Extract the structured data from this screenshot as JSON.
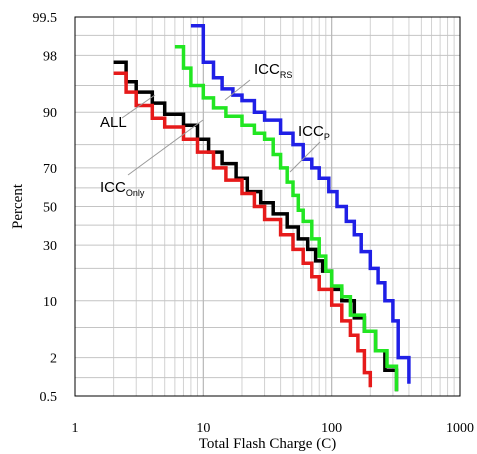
{
  "chart_data": {
    "type": "line",
    "x_scale": "log",
    "y_scale": "probability",
    "xlabel": "Total Flash Charge (C)",
    "ylabel": "Percent",
    "xlim": [
      1,
      1000
    ],
    "ylim": [
      0.5,
      99.5
    ],
    "grid": true,
    "x_ticks": [
      1,
      10,
      100,
      1000
    ],
    "x_tick_labels": [
      "1",
      "10",
      "100",
      "1000"
    ],
    "y_ticks": [
      0.5,
      2,
      10,
      30,
      50,
      70,
      90,
      98,
      99.5
    ],
    "y_tick_labels": [
      "0.5",
      "2",
      "10",
      "30",
      "50",
      "70",
      "90",
      "98",
      "99.5"
    ],
    "series": [
      {
        "name": "ALL",
        "label_main": "ALL",
        "label_sub": "",
        "color": "#000000",
        "points": [
          [
            2,
            97.5
          ],
          [
            2.5,
            95.5
          ],
          [
            3,
            94
          ],
          [
            4,
            92
          ],
          [
            5,
            89.5
          ],
          [
            7,
            86.5
          ],
          [
            9,
            82
          ],
          [
            11,
            77
          ],
          [
            14,
            72
          ],
          [
            18,
            65
          ],
          [
            22,
            58
          ],
          [
            28,
            52
          ],
          [
            35,
            46
          ],
          [
            45,
            39
          ],
          [
            55,
            33
          ],
          [
            65,
            28
          ],
          [
            75,
            23
          ],
          [
            85,
            19
          ],
          [
            100,
            13
          ],
          [
            120,
            10
          ],
          [
            150,
            6.5
          ],
          [
            180,
            4.5
          ],
          [
            220,
            2.5
          ],
          [
            260,
            1.3
          ],
          [
            320,
            0.6
          ]
        ]
      },
      {
        "name": "ICCRS",
        "label_main": "ICC",
        "label_sub": "RS",
        "color": "#1f1fe6",
        "points": [
          [
            8,
            99.3
          ],
          [
            10,
            97.5
          ],
          [
            12,
            96
          ],
          [
            14,
            94.5
          ],
          [
            17,
            93.5
          ],
          [
            20,
            92.5
          ],
          [
            25,
            90
          ],
          [
            30,
            88
          ],
          [
            40,
            84
          ],
          [
            50,
            80
          ],
          [
            60,
            74
          ],
          [
            70,
            70
          ],
          [
            80,
            65
          ],
          [
            95,
            58
          ],
          [
            110,
            50
          ],
          [
            130,
            42
          ],
          [
            150,
            35
          ],
          [
            170,
            27
          ],
          [
            200,
            20
          ],
          [
            230,
            15
          ],
          [
            260,
            10
          ],
          [
            300,
            6
          ],
          [
            330,
            2
          ],
          [
            370,
            2
          ],
          [
            400,
            0.8
          ]
        ]
      },
      {
        "name": "ICCP",
        "label_main": "ICC",
        "label_sub": "P",
        "color": "#22e622",
        "points": [
          [
            6,
            98.5
          ],
          [
            7,
            97
          ],
          [
            8,
            95
          ],
          [
            10,
            93
          ],
          [
            12,
            91
          ],
          [
            15,
            89
          ],
          [
            20,
            86.5
          ],
          [
            25,
            84
          ],
          [
            30,
            82
          ],
          [
            35,
            76
          ],
          [
            40,
            70
          ],
          [
            45,
            63
          ],
          [
            50,
            56
          ],
          [
            55,
            48
          ],
          [
            60,
            42
          ],
          [
            70,
            33
          ],
          [
            80,
            25
          ],
          [
            90,
            19
          ],
          [
            100,
            14
          ],
          [
            120,
            11
          ],
          [
            140,
            7
          ],
          [
            180,
            4.5
          ],
          [
            220,
            2.5
          ],
          [
            270,
            1.5
          ],
          [
            320,
            0.6
          ]
        ]
      },
      {
        "name": "ICCOnly",
        "label_main": "ICC",
        "label_sub": "Only",
        "color": "#e61a1a",
        "points": [
          [
            2,
            96.5
          ],
          [
            2.5,
            94
          ],
          [
            3,
            91.5
          ],
          [
            4,
            88.5
          ],
          [
            5,
            86
          ],
          [
            7,
            82
          ],
          [
            9,
            77
          ],
          [
            12,
            70
          ],
          [
            15,
            64
          ],
          [
            20,
            57
          ],
          [
            25,
            50
          ],
          [
            30,
            43
          ],
          [
            40,
            35
          ],
          [
            50,
            28
          ],
          [
            60,
            22
          ],
          [
            70,
            17
          ],
          [
            80,
            13
          ],
          [
            100,
            9
          ],
          [
            120,
            6
          ],
          [
            140,
            4
          ],
          [
            160,
            2.5
          ],
          [
            180,
            1.2
          ],
          [
            200,
            0.7
          ]
        ]
      }
    ]
  }
}
